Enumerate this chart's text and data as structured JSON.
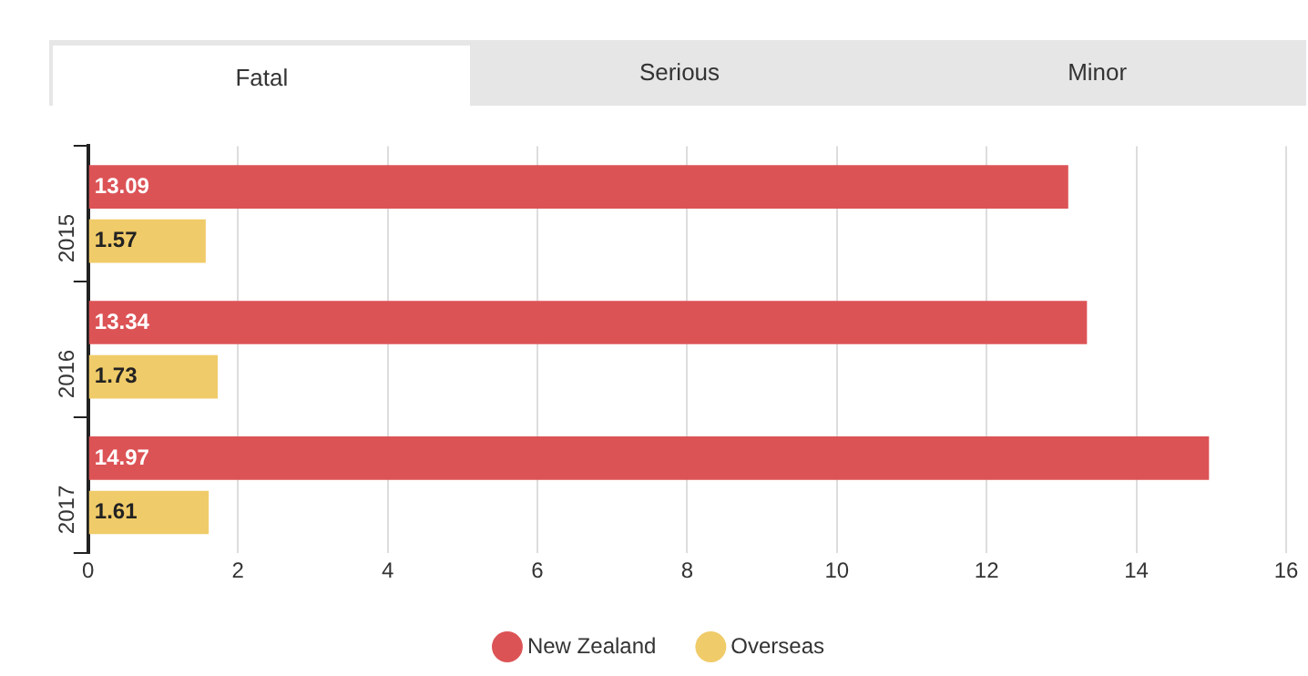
{
  "chart_data": {
    "type": "bar",
    "orientation": "horizontal",
    "categories": [
      "2015",
      "2016",
      "2017"
    ],
    "series": [
      {
        "name": "New Zealand",
        "color": "#dc5356",
        "values": [
          13.09,
          13.34,
          14.97
        ]
      },
      {
        "name": "Overseas",
        "color": "#f0cb69",
        "values": [
          1.57,
          1.73,
          1.61
        ]
      }
    ],
    "xlim": [
      0,
      16
    ],
    "xticks": [
      0,
      2,
      4,
      6,
      8,
      10,
      12,
      14,
      16
    ],
    "grid": "x",
    "legend": "bottom",
    "data_labels": true,
    "annotations": [
      "Fatal",
      "Serious",
      "Minor"
    ]
  }
}
